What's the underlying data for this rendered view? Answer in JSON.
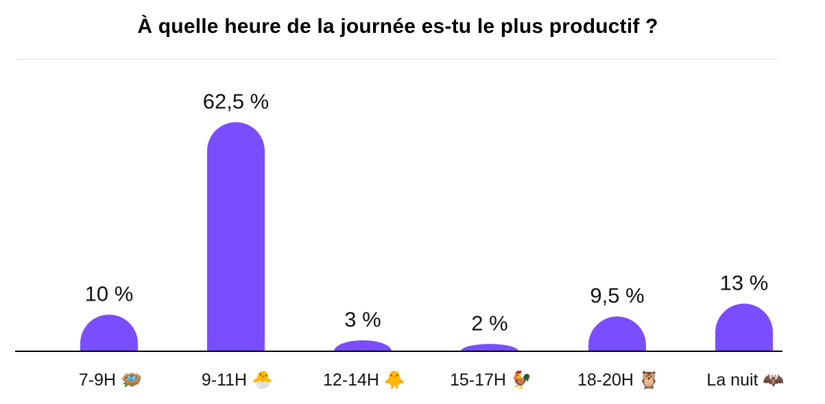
{
  "chart_data": {
    "type": "bar",
    "title": "À quelle heure de la journée es-tu le plus productif ?",
    "categories": [
      "7-9H 🪺",
      "9-11H 🐣",
      "12-14H 🐥",
      "15-17H 🐓",
      "18-20H 🦉",
      "La nuit 🦇"
    ],
    "category_labels": [
      "7-9H",
      "9-11H",
      "12-14H",
      "15-17H",
      "18-20H",
      "La nuit"
    ],
    "category_icons": [
      "nest-icon",
      "hatching-chick-icon",
      "chick-icon",
      "rooster-icon",
      "owl-icon",
      "bat-icon"
    ],
    "category_emoji": [
      "🪺",
      "🐣",
      "🐥",
      "🐓",
      "🦉",
      "🦇"
    ],
    "values": [
      10,
      62.5,
      3,
      2,
      9.5,
      13
    ],
    "value_labels": [
      "10 %",
      "62,5 %",
      "3 %",
      "2 %",
      "9,5 %",
      "13 %"
    ],
    "ylim": [
      0,
      65
    ],
    "grid": false,
    "legend": "none",
    "bar_color": "#7a4dff",
    "axis_color": "#000000"
  }
}
